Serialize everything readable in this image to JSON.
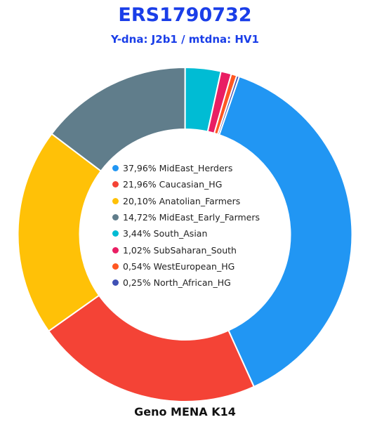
{
  "title": "ERS1790732",
  "subtitle": "Y-dna: J2b1 / mtdna: HV1",
  "footer": "Geno MENA K14",
  "chart_data": {
    "type": "pie",
    "variant": "donut",
    "categories": [
      "MidEast_Herders",
      "Caucasian_HG",
      "Anatolian_Farmers",
      "MidEast_Early_Farmers",
      "South_Asian",
      "SubSaharan_South",
      "WestEuropean_HG",
      "North_African_HG"
    ],
    "values": [
      37.96,
      21.96,
      20.1,
      14.72,
      3.44,
      1.02,
      0.54,
      0.25
    ],
    "value_labels": [
      "37,96%",
      "21,96%",
      "20,10%",
      "14,72%",
      "3,44%",
      "1,02%",
      "0,54%",
      "0,25%"
    ],
    "colors": [
      "#2196f3",
      "#f44336",
      "#ffc107",
      "#607d8b",
      "#00bcd4",
      "#e91e63",
      "#ff5722",
      "#3f51b5"
    ],
    "legend_placement": "center",
    "slice_order": "clockwise-from-right"
  }
}
